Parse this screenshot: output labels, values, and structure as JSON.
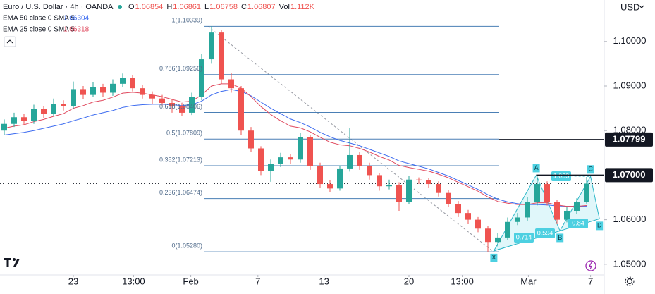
{
  "chart_data": {
    "type": "candlestick",
    "title": "Euro / U.S. Dollar · 4h · OANDA",
    "ohlc": [
      {
        "label": "O",
        "value": 1.06854
      },
      {
        "label": "H",
        "value": 1.06861
      },
      {
        "label": "L",
        "value": 1.06758
      },
      {
        "label": "C",
        "value": 1.06807
      },
      {
        "label": "Vol",
        "value": "1.112K"
      }
    ],
    "currency": "USD",
    "up_color": "#26a69a",
    "down_color": "#ef5350",
    "open": [
      1.08,
      1.0815,
      1.083,
      1.0822,
      1.0848,
      1.0838,
      1.086,
      1.0855,
      1.0893,
      1.088,
      1.0898,
      1.0885,
      1.0905,
      1.0918,
      1.0895,
      1.088,
      1.0872,
      1.0862,
      1.0855,
      1.084,
      1.0875,
      1.096,
      1.102,
      1.0915,
      1.0895,
      1.08,
      1.076,
      1.071,
      1.0725,
      1.074,
      1.0735,
      1.0785,
      1.072,
      1.068,
      1.067,
      1.0715,
      1.0745,
      1.072,
      1.07,
      1.0675,
      1.0678,
      1.064,
      1.069,
      1.0688,
      1.068,
      1.066,
      1.0635,
      1.0615,
      1.06,
      1.058,
      1.055,
      1.056,
      1.0595,
      1.0605,
      1.064,
      1.068,
      1.064,
      1.06,
      1.062,
      1.064
    ],
    "high": [
      1.0825,
      1.084,
      1.0838,
      1.0858,
      1.0855,
      1.0872,
      1.0868,
      1.091,
      1.09,
      1.0908,
      1.0905,
      1.0915,
      1.0928,
      1.0924,
      1.0902,
      1.0888,
      1.088,
      1.087,
      1.0862,
      1.0885,
      1.0972,
      1.1034,
      1.1025,
      1.093,
      1.09,
      1.0808,
      1.0765,
      1.0735,
      1.075,
      1.0748,
      1.0795,
      1.079,
      1.0728,
      1.0688,
      1.0722,
      1.0805,
      1.0752,
      1.0728,
      1.0705,
      1.069,
      1.0684,
      1.0698,
      1.0695,
      1.0694,
      1.0686,
      1.0666,
      1.0642,
      1.0622,
      1.0606,
      1.0586,
      1.057,
      1.0605,
      1.0615,
      1.065,
      1.0697,
      1.0686,
      1.0645,
      1.0628,
      1.0648,
      1.0696
    ],
    "low": [
      1.079,
      1.0808,
      1.0812,
      1.0815,
      1.0828,
      1.0832,
      1.0845,
      1.085,
      1.087,
      1.0875,
      1.0876,
      1.0878,
      1.0897,
      1.0888,
      1.0872,
      1.086,
      1.0855,
      1.084,
      1.0832,
      1.0835,
      1.0868,
      1.095,
      1.0905,
      1.0885,
      1.079,
      1.0752,
      1.07,
      1.0685,
      1.0718,
      1.0725,
      1.0728,
      1.0712,
      1.0672,
      1.0662,
      1.0665,
      1.0708,
      1.0712,
      1.069,
      1.0665,
      1.0668,
      1.062,
      1.0635,
      1.068,
      1.0672,
      1.0652,
      1.0628,
      1.0606,
      1.059,
      1.0572,
      1.0528,
      1.054,
      1.0555,
      1.0588,
      1.0598,
      1.0632,
      1.0632,
      1.059,
      1.0594,
      1.0612,
      1.0636
    ],
    "close": [
      1.0815,
      1.083,
      1.0822,
      1.0848,
      1.0838,
      1.086,
      1.0855,
      1.0893,
      1.088,
      1.0898,
      1.0885,
      1.0905,
      1.0918,
      1.0895,
      1.088,
      1.0872,
      1.0862,
      1.0855,
      1.084,
      1.0875,
      1.096,
      1.102,
      1.0915,
      1.0895,
      1.08,
      1.076,
      1.071,
      1.0725,
      1.074,
      1.0735,
      1.0785,
      1.072,
      1.068,
      1.067,
      1.0715,
      1.0745,
      1.072,
      1.07,
      1.0675,
      1.0678,
      1.064,
      1.069,
      1.0688,
      1.068,
      1.066,
      1.0635,
      1.0615,
      1.06,
      1.058,
      1.055,
      1.056,
      1.0595,
      1.0605,
      1.064,
      1.068,
      1.064,
      1.06,
      1.062,
      1.064,
      1.0681
    ],
    "series": [
      {
        "name": "EMA 50 close 0 SMA 5",
        "color": "#3d6cf0",
        "values": [
          1.079,
          1.0793,
          1.0796,
          1.08,
          1.0805,
          1.081,
          1.0815,
          1.0822,
          1.0828,
          1.0835,
          1.084,
          1.0845,
          1.0852,
          1.0856,
          1.0858,
          1.0859,
          1.0859,
          1.0858,
          1.0856,
          1.0858,
          1.0866,
          1.088,
          1.0888,
          1.0892,
          1.0888,
          1.0878,
          1.0864,
          1.085,
          1.0838,
          1.0826,
          1.0818,
          1.0808,
          1.0796,
          1.0786,
          1.0778,
          1.0772,
          1.0766,
          1.0758,
          1.075,
          1.0742,
          1.0732,
          1.0726,
          1.072,
          1.0714,
          1.0706,
          1.0698,
          1.0688,
          1.0678,
          1.0668,
          1.0656,
          1.0646,
          1.064,
          1.0636,
          1.0634,
          1.0634,
          1.0633,
          1.0631,
          1.063,
          1.063,
          1.06304
        ]
      },
      {
        "name": "EMA 25 close 0 SMA 5",
        "color": "#e04a5f",
        "values": [
          1.0805,
          1.081,
          1.0813,
          1.082,
          1.0825,
          1.0832,
          1.0838,
          1.085,
          1.0856,
          1.0864,
          1.0868,
          1.0875,
          1.0884,
          1.0886,
          1.0884,
          1.088,
          1.0876,
          1.087,
          1.0864,
          1.0866,
          1.088,
          1.09,
          1.0905,
          1.0905,
          1.0895,
          1.0876,
          1.0854,
          1.0836,
          1.0822,
          1.081,
          1.0806,
          1.0797,
          1.0785,
          1.0774,
          1.0768,
          1.0766,
          1.076,
          1.0752,
          1.0742,
          1.0734,
          1.0722,
          1.0717,
          1.0713,
          1.0709,
          1.0702,
          1.0694,
          1.0684,
          1.0674,
          1.0664,
          1.0651,
          1.0641,
          1.0637,
          1.0634,
          1.0634,
          1.0638,
          1.0638,
          1.0633,
          1.063,
          1.063,
          1.06318
        ]
      }
    ],
    "ylim": [
      1.0476,
      1.1093
    ],
    "yticks": [
      {
        "value": 1.05,
        "label": "1.05000"
      },
      {
        "value": 1.06,
        "label": "1.06000"
      },
      {
        "value": 1.08,
        "label": "1.08000"
      },
      {
        "value": 1.09,
        "label": "1.09000"
      },
      {
        "value": 1.1,
        "label": "1.10000"
      }
    ],
    "xticks": [
      {
        "value": 7,
        "label": "23"
      },
      {
        "value": 13.1,
        "label": "13:00"
      },
      {
        "value": 18.9,
        "label": "Feb"
      },
      {
        "value": 25.7,
        "label": "7"
      },
      {
        "value": 32.4,
        "label": "13"
      },
      {
        "value": 41,
        "label": "20"
      },
      {
        "value": 46.4,
        "label": "13:00"
      },
      {
        "value": 53.1,
        "label": "Mar"
      },
      {
        "value": 59.4,
        "label": "7"
      }
    ],
    "fibonacci": [
      {
        "label": "1(1.10339)",
        "value": 1.10339
      },
      {
        "label": "0.786(1.09256)",
        "value": 1.09256
      },
      {
        "label": "0.618(1.08406)",
        "value": 1.08406
      },
      {
        "label": "0.5(1.07809)",
        "value": 1.07809
      },
      {
        "label": "0.382(1.07213)",
        "value": 1.07213
      },
      {
        "label": "0.236(1.06474)",
        "value": 1.06474
      },
      {
        "label": "0(1.05280)",
        "value": 1.0528
      }
    ],
    "price_tags": [
      {
        "value": 1.07799
      },
      {
        "value": 1.07,
        "label": "1.07000"
      }
    ],
    "pattern": {
      "points": [
        {
          "label": "X",
          "x": 49.6,
          "value": 1.053
        },
        {
          "label": "A",
          "x": 53.9,
          "value": 1.07
        },
        {
          "label": "B",
          "x": 56.3,
          "value": 1.0575
        },
        {
          "label": "C",
          "x": 59.4,
          "value": 1.0697
        },
        {
          "label": "D",
          "x": 60.3,
          "value": 1.0602
        }
      ],
      "ratios": [
        "0.714",
        "0.594",
        "1.033",
        "0.84"
      ]
    }
  }
}
